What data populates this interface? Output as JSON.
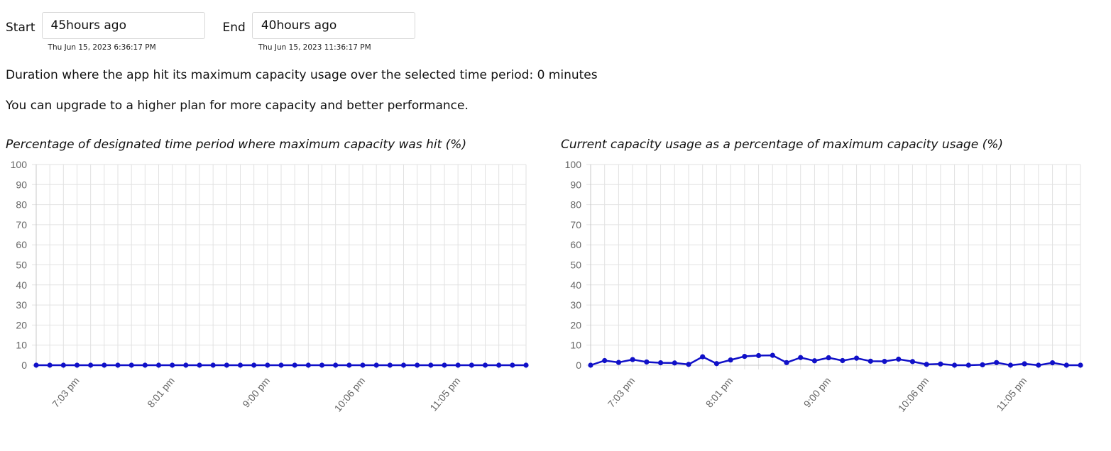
{
  "range": {
    "start_label": "Start",
    "start_value": "45hours ago",
    "start_date": "Thu Jun 15, 2023 6:36:17 PM",
    "end_label": "End",
    "end_value": "40hours ago",
    "end_date": "Thu Jun 15, 2023 11:36:17 PM"
  },
  "messages": {
    "duration": "Duration where the app hit its maximum capacity usage over the selected time period: 0 minutes",
    "upgrade": "You can upgrade to a higher plan for more capacity and better performance."
  },
  "colors": {
    "series_line": "#1010c8",
    "grid": "#e2e2e2",
    "axis_text": "#666666"
  },
  "chart_data": [
    {
      "type": "line",
      "title": "Percentage of designated time period where maximum capacity was hit (%)",
      "ylim": [
        0,
        100
      ],
      "yticks": [
        0,
        10,
        20,
        30,
        40,
        50,
        60,
        70,
        80,
        90,
        100
      ],
      "x_tick_labels": [
        "7:03 pm",
        "8:01 pm",
        "9:00 pm",
        "10:06 pm",
        "11:05 pm"
      ],
      "x_tick_label_indices": [
        3,
        10,
        17,
        24,
        31
      ],
      "grid": true,
      "legend": "none",
      "series": [
        {
          "values": [
            0,
            0,
            0,
            0,
            0,
            0,
            0,
            0,
            0,
            0,
            0,
            0,
            0,
            0,
            0,
            0,
            0,
            0,
            0,
            0,
            0,
            0,
            0,
            0,
            0,
            0,
            0,
            0,
            0,
            0,
            0,
            0,
            0,
            0,
            0,
            0,
            0
          ]
        }
      ]
    },
    {
      "type": "line",
      "title": "Current capacity usage as a percentage of maximum capacity usage (%)",
      "ylim": [
        0,
        100
      ],
      "yticks": [
        0,
        10,
        20,
        30,
        40,
        50,
        60,
        70,
        80,
        90,
        100
      ],
      "x_tick_labels": [
        "7:03 pm",
        "8:01 pm",
        "9:00 pm",
        "10:06 pm",
        "11:05 pm"
      ],
      "x_tick_label_indices": [
        3,
        10,
        17,
        24,
        31
      ],
      "grid": true,
      "legend": "none",
      "series": [
        {
          "values": [
            0,
            2.3,
            1.4,
            2.8,
            1.6,
            1.2,
            1.1,
            0.4,
            4.2,
            0.8,
            2.6,
            4.4,
            4.8,
            4.9,
            1.3,
            3.8,
            2.2,
            3.7,
            2.3,
            3.5,
            2.0,
            1.9,
            3.0,
            1.8,
            0.4,
            0.6,
            0,
            0,
            0.2,
            1.3,
            0,
            0.7,
            0,
            1.2,
            0,
            0
          ]
        }
      ]
    }
  ]
}
